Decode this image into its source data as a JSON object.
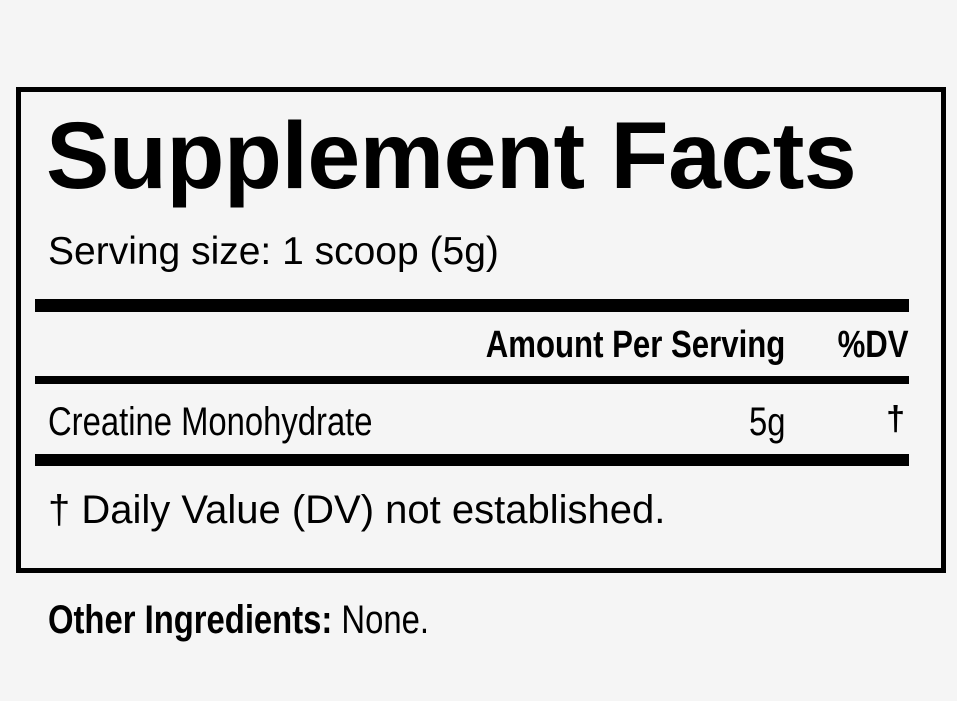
{
  "label": {
    "title": "Supplement Facts",
    "serving_size": "Serving size: 1 scoop (5g)",
    "header": {
      "amount": "Amount Per Serving",
      "dv": "%DV"
    },
    "rows": [
      {
        "name": "Creatine Monohydrate",
        "amount": "5g",
        "dv": "†"
      }
    ],
    "footnote": "† Daily Value (DV) not established.",
    "other_ingredients": {
      "label": "Other Ingredients:",
      "value": "None."
    }
  }
}
